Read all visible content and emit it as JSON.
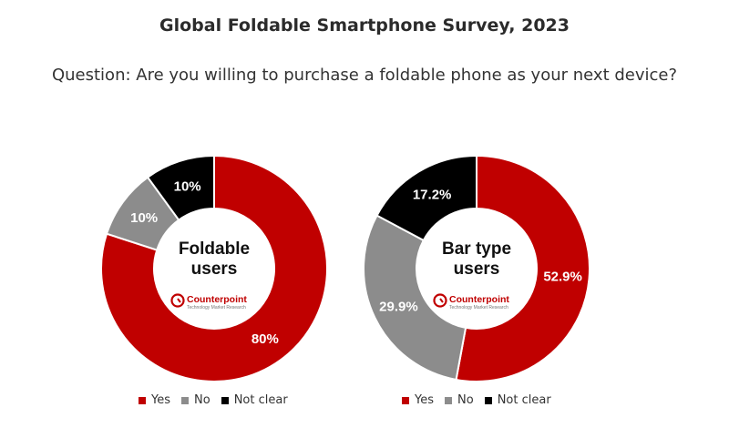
{
  "header": {
    "title": "Global Foldable Smartphone Survey, 2023",
    "question": "Question: Are you willing to purchase a foldable phone as your next device?"
  },
  "colors": {
    "Yes": "#c00000",
    "No": "#8c8c8c",
    "Not clear": "#000000"
  },
  "logo": {
    "brand": "Counterpoint",
    "tagline": "Technology Market Research"
  },
  "chart_data": [
    {
      "type": "pie",
      "title": "",
      "center_label": [
        "Foldable",
        "users"
      ],
      "labels": [
        "Yes",
        "No",
        "Not clear"
      ],
      "values": [
        80,
        10,
        10
      ],
      "value_labels": [
        "80%",
        "10%",
        "10%"
      ],
      "legend": [
        "Yes",
        "No",
        "Not clear"
      ],
      "legend_position": "bottom",
      "hole": true
    },
    {
      "type": "pie",
      "title": "",
      "center_label": [
        "Bar type",
        "users"
      ],
      "labels": [
        "Yes",
        "No",
        "Not clear"
      ],
      "values": [
        52.9,
        29.9,
        17.2
      ],
      "value_labels": [
        "52.9%",
        "29.9%",
        "17.2%"
      ],
      "legend": [
        "Yes",
        "No",
        "Not clear"
      ],
      "legend_position": "bottom",
      "hole": true
    }
  ]
}
